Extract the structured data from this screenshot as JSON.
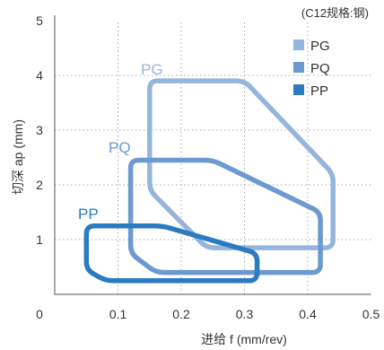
{
  "chart_data": {
    "type": "area",
    "title": "(C12规格:钢)",
    "x_axis": {
      "label": "进给 f (mm/rev)",
      "range": [
        0,
        0.5
      ],
      "ticks": [
        0.1,
        0.2,
        0.3,
        0.4,
        0.5
      ],
      "tick_labels": [
        "0.1",
        "0.2",
        "0.3",
        "0.4",
        "0.5"
      ]
    },
    "y_axis": {
      "label": "切深 ap (mm)",
      "range": [
        0,
        5
      ],
      "ticks": [
        1,
        2,
        3,
        4,
        5
      ],
      "tick_labels": [
        "1",
        "2",
        "3",
        "4",
        "5"
      ]
    },
    "origin_label": "0",
    "grid": "dotted",
    "legend_position": "top-right",
    "series": [
      {
        "name": "PG",
        "color": "#95b5dd",
        "points": [
          [
            0.15,
            3.9
          ],
          [
            0.3,
            3.9
          ],
          [
            0.44,
            2.2
          ],
          [
            0.44,
            0.85
          ],
          [
            0.24,
            0.85
          ],
          [
            0.15,
            1.9
          ]
        ]
      },
      {
        "name": "PQ",
        "color": "#6b99d0",
        "points": [
          [
            0.12,
            2.45
          ],
          [
            0.25,
            2.45
          ],
          [
            0.42,
            1.5
          ],
          [
            0.42,
            0.4
          ],
          [
            0.16,
            0.4
          ],
          [
            0.12,
            0.75
          ]
        ]
      },
      {
        "name": "PP",
        "color": "#2b7bc1",
        "points": [
          [
            0.05,
            1.25
          ],
          [
            0.17,
            1.25
          ],
          [
            0.32,
            0.75
          ],
          [
            0.32,
            0.25
          ],
          [
            0.08,
            0.25
          ],
          [
            0.05,
            0.45
          ]
        ]
      }
    ]
  }
}
